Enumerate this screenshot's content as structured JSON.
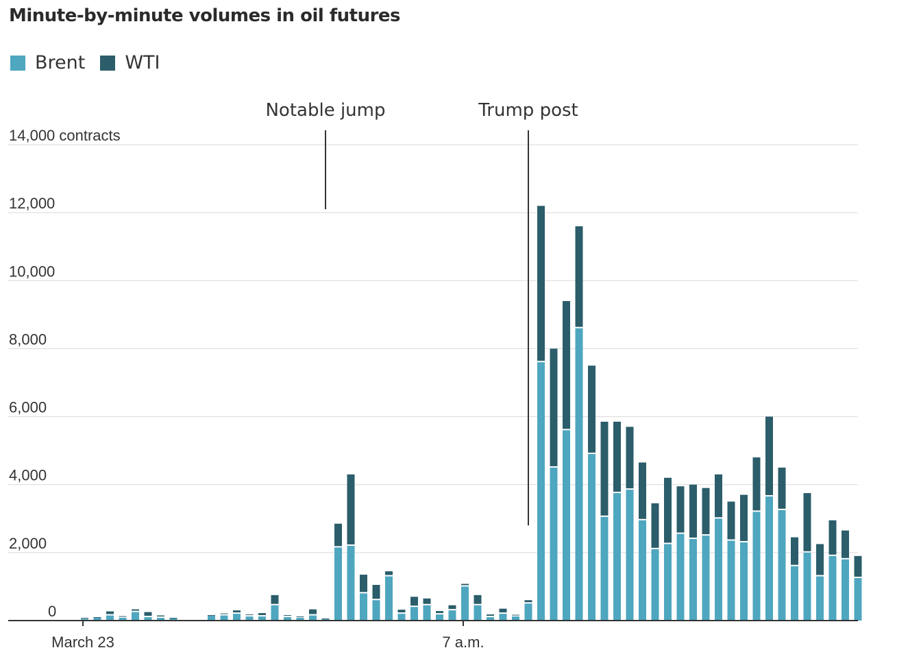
{
  "chart_data": {
    "type": "bar",
    "stacked": true,
    "title": "Minute-by-minute volumes in oil futures",
    "ylabel_unit": "contracts",
    "ylim": [
      0,
      14000
    ],
    "yticks": [
      {
        "value": 0,
        "label": "0"
      },
      {
        "value": 2000,
        "label": "2,000"
      },
      {
        "value": 4000,
        "label": "4,000"
      },
      {
        "value": 6000,
        "label": "6,000"
      },
      {
        "value": 8000,
        "label": "8,000"
      },
      {
        "value": 10000,
        "label": "10,000"
      },
      {
        "value": 12000,
        "label": "12,000"
      },
      {
        "value": 14000,
        "label": "14,000 contracts"
      }
    ],
    "xlim": [
      0,
      60
    ],
    "xticks": [
      {
        "index": 0,
        "label": "March 23"
      },
      {
        "index": 30,
        "label": "7 a.m."
      }
    ],
    "series": [
      {
        "name": "Brent",
        "color": "#4ea6bf",
        "values": [
          50,
          80,
          150,
          80,
          250,
          100,
          80,
          60,
          0,
          0,
          140,
          150,
          200,
          120,
          120,
          450,
          100,
          80,
          150,
          40,
          2150,
          2200,
          800,
          600,
          1300,
          200,
          400,
          450,
          180,
          300,
          1000,
          450,
          100,
          200,
          120,
          500,
          7600,
          4500,
          5600,
          8600,
          4900,
          3050,
          3750,
          3850,
          2950,
          2100,
          2250,
          2550,
          2400,
          2500,
          3000,
          2350,
          2300,
          3200,
          3650,
          3250,
          1600,
          2000,
          1300,
          1900,
          1800,
          1250
        ]
      },
      {
        "name": "WTI",
        "color": "#2b5d6a",
        "values": [
          30,
          20,
          120,
          50,
          80,
          150,
          70,
          20,
          0,
          0,
          20,
          60,
          100,
          60,
          100,
          300,
          60,
          40,
          180,
          20,
          700,
          2100,
          550,
          450,
          150,
          120,
          300,
          200,
          100,
          150,
          80,
          300,
          80,
          150,
          50,
          100,
          4600,
          3500,
          3800,
          3000,
          2600,
          2800,
          2100,
          1850,
          1700,
          1350,
          1950,
          1400,
          1600,
          1400,
          1300,
          1150,
          1400,
          1600,
          2350,
          1250,
          850,
          1750,
          950,
          1050,
          850,
          650
        ]
      }
    ],
    "annotations": [
      {
        "label": "Notable jump",
        "index": 19,
        "top_value": 12100
      },
      {
        "label": "Trump post",
        "index": 35,
        "top_value": 2800
      }
    ]
  }
}
